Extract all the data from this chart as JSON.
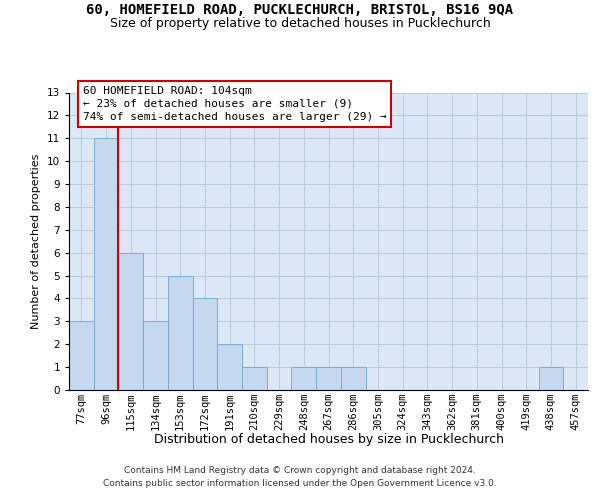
{
  "title1": "60, HOMEFIELD ROAD, PUCKLECHURCH, BRISTOL, BS16 9QA",
  "title2": "Size of property relative to detached houses in Pucklechurch",
  "xlabel": "Distribution of detached houses by size in Pucklechurch",
  "ylabel": "Number of detached properties",
  "categories": [
    "77sqm",
    "96sqm",
    "115sqm",
    "134sqm",
    "153sqm",
    "172sqm",
    "191sqm",
    "210sqm",
    "229sqm",
    "248sqm",
    "267sqm",
    "286sqm",
    "305sqm",
    "324sqm",
    "343sqm",
    "362sqm",
    "381sqm",
    "400sqm",
    "419sqm",
    "438sqm",
    "457sqm"
  ],
  "values": [
    3,
    11,
    6,
    3,
    5,
    4,
    2,
    1,
    0,
    1,
    1,
    1,
    0,
    0,
    0,
    0,
    0,
    0,
    0,
    1,
    0
  ],
  "bar_color": "#c5d8f0",
  "bar_edge_color": "#7aadd4",
  "vline_color": "#cc0000",
  "vline_pos": 1.5,
  "ylim": [
    0,
    13
  ],
  "yticks": [
    0,
    1,
    2,
    3,
    4,
    5,
    6,
    7,
    8,
    9,
    10,
    11,
    12,
    13
  ],
  "annotation_line1": "60 HOMEFIELD ROAD: 104sqm",
  "annotation_line2": "← 23% of detached houses are smaller (9)",
  "annotation_line3": "74% of semi-detached houses are larger (29) →",
  "annotation_box_color": "#ffffff",
  "annotation_box_edge": "#cc0000",
  "footer1": "Contains HM Land Registry data © Crown copyright and database right 2024.",
  "footer2": "Contains public sector information licensed under the Open Government Licence v3.0.",
  "bg_color": "#dce8f5",
  "grid_color": "#b8ccdf",
  "title1_fontsize": 10,
  "title2_fontsize": 9,
  "xlabel_fontsize": 9,
  "ylabel_fontsize": 8,
  "tick_fontsize": 7.5,
  "footer_fontsize": 6.5,
  "annot_fontsize": 8
}
